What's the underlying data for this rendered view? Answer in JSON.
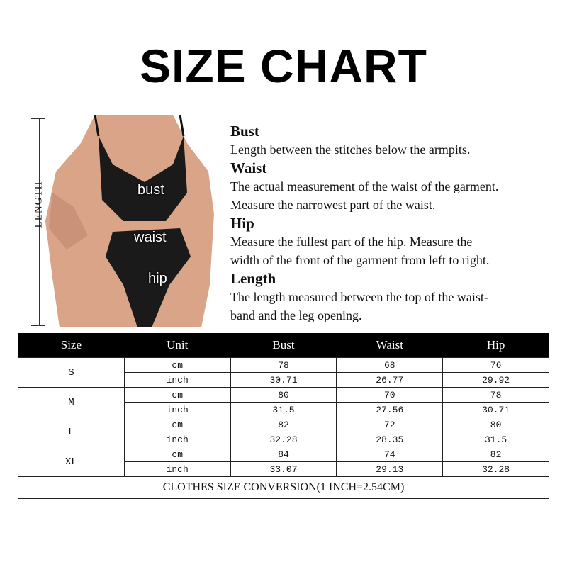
{
  "title": "SIZE CHART",
  "length_label": "LENGTH",
  "photo_labels": {
    "bust": "bust",
    "waist": "waist",
    "hip": "hip"
  },
  "descriptions": [
    {
      "heading": "Bust",
      "lines": [
        "Length between the stitches below the armpits."
      ]
    },
    {
      "heading": "Waist",
      "lines": [
        "The actual measurement of the waist of the garment.",
        "Measure the narrowest part of the waist."
      ]
    },
    {
      "heading": "Hip",
      "lines": [
        "Measure the fullest part of the  hip. Measure the",
        "width of the front of the garment from left to right."
      ]
    },
    {
      "heading": "Length",
      "lines": [
        "The length measured between the top of the waist-",
        "band and the leg opening."
      ]
    }
  ],
  "table": {
    "headers": [
      "Size",
      "Unit",
      "Bust",
      "Waist",
      "Hip"
    ],
    "rows": [
      {
        "size": "S",
        "cm": [
          "78",
          "68",
          "76"
        ],
        "inch": [
          "30.71",
          "26.77",
          "29.92"
        ]
      },
      {
        "size": "M",
        "cm": [
          "80",
          "70",
          "78"
        ],
        "inch": [
          "31.5",
          "27.56",
          "30.71"
        ]
      },
      {
        "size": "L",
        "cm": [
          "82",
          "72",
          "80"
        ],
        "inch": [
          "32.28",
          "28.35",
          "31.5"
        ]
      },
      {
        "size": "XL",
        "cm": [
          "84",
          "74",
          "82"
        ],
        "inch": [
          "33.07",
          "29.13",
          "32.28"
        ]
      }
    ],
    "unit_cm": "cm",
    "unit_inch": "inch",
    "footer": "CLOTHES SIZE CONVERSION(1 INCH=2.54CM)"
  },
  "colors": {
    "header_bg": "#000000",
    "skin": "#d9a488",
    "lace": "#1a1a1a"
  }
}
